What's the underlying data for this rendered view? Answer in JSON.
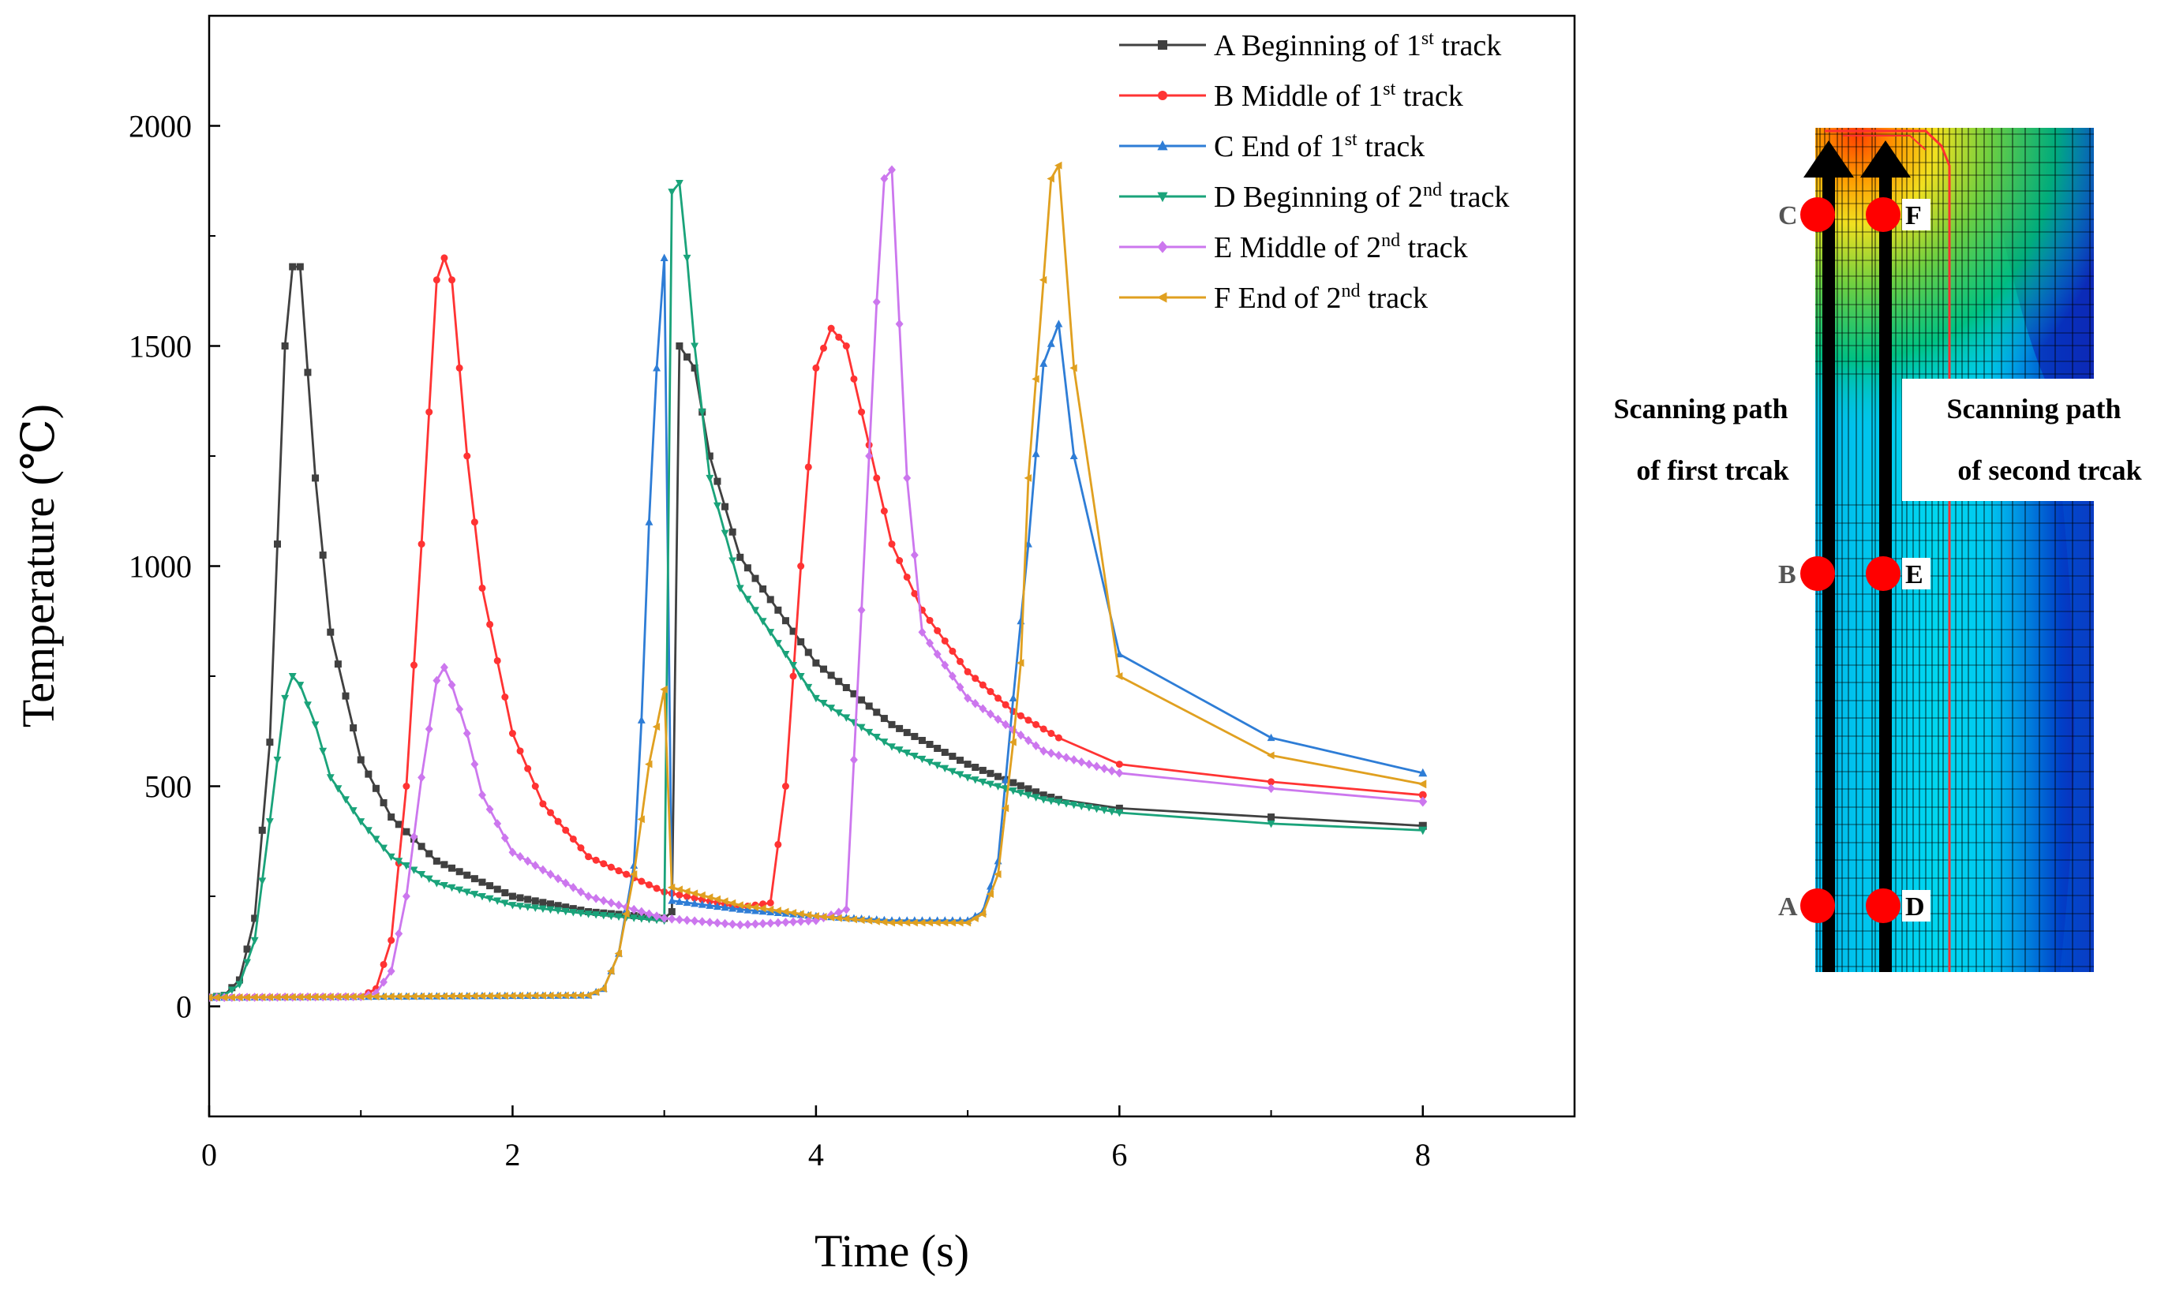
{
  "chart_data": {
    "type": "line",
    "title": "",
    "xlabel": "Time (s)",
    "ylabel": "Temperature (℃)",
    "xlim": [
      0,
      9
    ],
    "ylim": [
      -250,
      2250
    ],
    "xticks": [
      0,
      2,
      4,
      6,
      8
    ],
    "yticks": [
      0,
      500,
      1000,
      1500,
      2000
    ],
    "xtick_labels": [
      "0",
      "2",
      "4",
      "6",
      "8"
    ],
    "ytick_labels": [
      "0",
      "500",
      "1000",
      "1500",
      "2000"
    ],
    "grid": false,
    "legend_position": "top-right",
    "series": [
      {
        "id": "A",
        "legend": {
          "pre": "A Beginning of 1",
          "sup": "st",
          "post": " track"
        },
        "color": "#404040",
        "marker": "square",
        "peak_time": 0.55,
        "points": [
          [
            0,
            20
          ],
          [
            0.1,
            25
          ],
          [
            0.2,
            60
          ],
          [
            0.3,
            200
          ],
          [
            0.4,
            600
          ],
          [
            0.5,
            1500
          ],
          [
            0.55,
            1680
          ],
          [
            0.6,
            1680
          ],
          [
            0.7,
            1200
          ],
          [
            0.8,
            850
          ],
          [
            1.0,
            560
          ],
          [
            1.2,
            430
          ],
          [
            1.5,
            330
          ],
          [
            2.0,
            250
          ],
          [
            2.5,
            215
          ],
          [
            3.0,
            200
          ],
          [
            3.05,
            215
          ],
          [
            3.1,
            1500
          ],
          [
            3.2,
            1450
          ],
          [
            3.3,
            1250
          ],
          [
            3.5,
            1020
          ],
          [
            4.0,
            780
          ],
          [
            4.5,
            640
          ],
          [
            5.0,
            550
          ],
          [
            5.5,
            480
          ],
          [
            5.6,
            470
          ],
          [
            6.0,
            450
          ],
          [
            7.0,
            430
          ],
          [
            8.0,
            410
          ]
        ]
      },
      {
        "id": "B",
        "legend": {
          "pre": "B Middle of 1",
          "sup": "st",
          "post": " track"
        },
        "color": "#ff3333",
        "marker": "circle",
        "peak_time": 1.55,
        "points": [
          [
            0,
            20
          ],
          [
            1.0,
            22
          ],
          [
            1.1,
            40
          ],
          [
            1.2,
            150
          ],
          [
            1.3,
            500
          ],
          [
            1.4,
            1050
          ],
          [
            1.5,
            1650
          ],
          [
            1.55,
            1700
          ],
          [
            1.6,
            1650
          ],
          [
            1.7,
            1250
          ],
          [
            1.8,
            950
          ],
          [
            2.0,
            620
          ],
          [
            2.2,
            460
          ],
          [
            2.5,
            340
          ],
          [
            3.0,
            260
          ],
          [
            3.5,
            225
          ],
          [
            3.7,
            235
          ],
          [
            3.8,
            500
          ],
          [
            3.9,
            1000
          ],
          [
            4.0,
            1450
          ],
          [
            4.1,
            1540
          ],
          [
            4.2,
            1500
          ],
          [
            4.3,
            1350
          ],
          [
            4.5,
            1050
          ],
          [
            4.7,
            900
          ],
          [
            5.0,
            760
          ],
          [
            5.3,
            670
          ],
          [
            5.6,
            610
          ],
          [
            6.0,
            550
          ],
          [
            7.0,
            510
          ],
          [
            8.0,
            480
          ]
        ]
      },
      {
        "id": "C",
        "legend": {
          "pre": "C End of 1",
          "sup": "st",
          "post": " track"
        },
        "color": "#2e7dd6",
        "marker": "triangle-up",
        "peak_time": 3.0,
        "points": [
          [
            0,
            20
          ],
          [
            2.5,
            25
          ],
          [
            2.6,
            40
          ],
          [
            2.7,
            120
          ],
          [
            2.8,
            320
          ],
          [
            2.85,
            650
          ],
          [
            2.9,
            1100
          ],
          [
            2.95,
            1450
          ],
          [
            3.0,
            1700
          ],
          [
            3.05,
            240
          ],
          [
            3.5,
            220
          ],
          [
            4.0,
            205
          ],
          [
            4.5,
            195
          ],
          [
            5.0,
            195
          ],
          [
            5.1,
            215
          ],
          [
            5.2,
            330
          ],
          [
            5.3,
            700
          ],
          [
            5.4,
            1050
          ],
          [
            5.5,
            1460
          ],
          [
            5.6,
            1550
          ],
          [
            5.7,
            1250
          ],
          [
            6.0,
            800
          ],
          [
            7.0,
            610
          ],
          [
            8.0,
            530
          ]
        ]
      },
      {
        "id": "D",
        "legend": {
          "pre": "D Beginning of 2",
          "sup": "nd",
          "post": " track"
        },
        "color": "#1aa37a",
        "marker": "triangle-down",
        "peak_time": 3.1,
        "points": [
          [
            0,
            20
          ],
          [
            0.1,
            25
          ],
          [
            0.2,
            50
          ],
          [
            0.3,
            150
          ],
          [
            0.4,
            420
          ],
          [
            0.5,
            700
          ],
          [
            0.55,
            750
          ],
          [
            0.6,
            730
          ],
          [
            0.7,
            640
          ],
          [
            0.8,
            520
          ],
          [
            1.0,
            420
          ],
          [
            1.2,
            340
          ],
          [
            1.5,
            280
          ],
          [
            2.0,
            230
          ],
          [
            2.5,
            210
          ],
          [
            3.0,
            195
          ],
          [
            3.05,
            1850
          ],
          [
            3.1,
            1870
          ],
          [
            3.15,
            1700
          ],
          [
            3.2,
            1500
          ],
          [
            3.3,
            1200
          ],
          [
            3.5,
            950
          ],
          [
            4.0,
            700
          ],
          [
            4.5,
            590
          ],
          [
            5.0,
            520
          ],
          [
            5.5,
            470
          ],
          [
            6.0,
            440
          ],
          [
            7.0,
            415
          ],
          [
            8.0,
            400
          ]
        ]
      },
      {
        "id": "E",
        "legend": {
          "pre": "E Middle of 2",
          "sup": "nd",
          "post": " track"
        },
        "color": "#cc77ee",
        "marker": "diamond",
        "peak_time": 4.5,
        "points": [
          [
            0,
            20
          ],
          [
            1.0,
            22
          ],
          [
            1.1,
            30
          ],
          [
            1.2,
            80
          ],
          [
            1.3,
            250
          ],
          [
            1.4,
            520
          ],
          [
            1.5,
            740
          ],
          [
            1.55,
            770
          ],
          [
            1.6,
            730
          ],
          [
            1.7,
            620
          ],
          [
            1.8,
            480
          ],
          [
            2.0,
            350
          ],
          [
            2.5,
            250
          ],
          [
            3.0,
            200
          ],
          [
            3.5,
            185
          ],
          [
            4.0,
            195
          ],
          [
            4.2,
            220
          ],
          [
            4.3,
            900
          ],
          [
            4.35,
            1250
          ],
          [
            4.4,
            1600
          ],
          [
            4.45,
            1880
          ],
          [
            4.5,
            1900
          ],
          [
            4.6,
            1200
          ],
          [
            4.7,
            850
          ],
          [
            5.0,
            700
          ],
          [
            5.5,
            580
          ],
          [
            6.0,
            530
          ],
          [
            7.0,
            495
          ],
          [
            8.0,
            465
          ]
        ]
      },
      {
        "id": "F",
        "legend": {
          "pre": "F End of 2",
          "sup": "nd",
          "post": " track"
        },
        "color": "#e0a020",
        "marker": "triangle-left",
        "peak_time": 5.6,
        "points": [
          [
            0,
            20
          ],
          [
            2.5,
            25
          ],
          [
            2.6,
            40
          ],
          [
            2.7,
            120
          ],
          [
            2.8,
            300
          ],
          [
            2.9,
            550
          ],
          [
            3.0,
            720
          ],
          [
            3.05,
            270
          ],
          [
            3.5,
            230
          ],
          [
            4.0,
            205
          ],
          [
            4.5,
            190
          ],
          [
            5.0,
            190
          ],
          [
            5.1,
            210
          ],
          [
            5.2,
            300
          ],
          [
            5.3,
            600
          ],
          [
            5.35,
            780
          ],
          [
            5.4,
            1200
          ],
          [
            5.5,
            1650
          ],
          [
            5.55,
            1880
          ],
          [
            5.6,
            1910
          ],
          [
            5.7,
            1450
          ],
          [
            6.0,
            750
          ],
          [
            7.0,
            570
          ],
          [
            8.0,
            505
          ]
        ]
      }
    ]
  },
  "temperature_map": {
    "points_left": [
      "C",
      "B",
      "A"
    ],
    "points_right": [
      "F",
      "E",
      "D"
    ],
    "label_first_track": [
      "Scanning path",
      "of first trcak"
    ],
    "label_second_track": [
      "Scanning path",
      "of second trcak"
    ],
    "marker_color": "#ff0000",
    "arrow_color": "#000000",
    "melt_pool_outline_color": "#ff3030"
  }
}
